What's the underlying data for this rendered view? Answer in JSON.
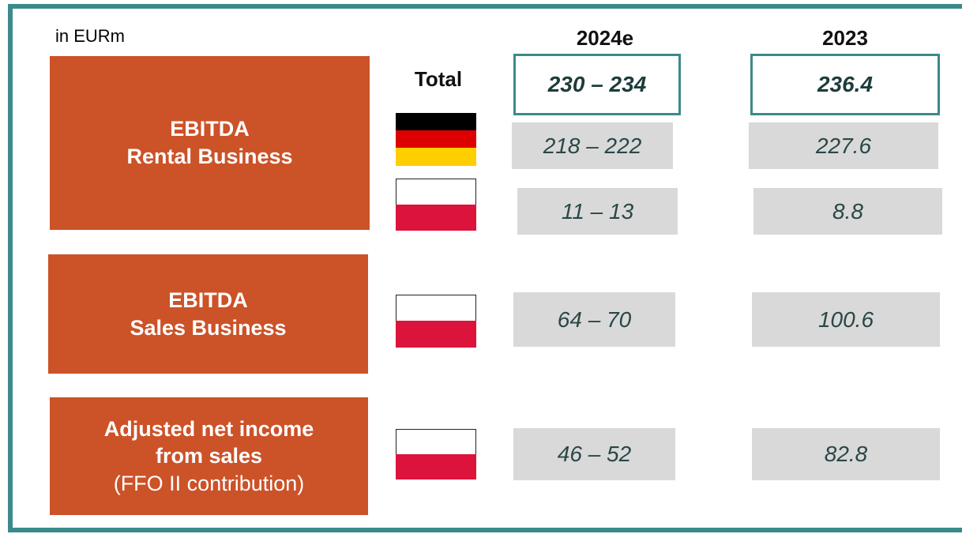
{
  "unit": "in EURm",
  "columns": [
    "2024e",
    "2023"
  ],
  "total": {
    "label": "Total",
    "values": [
      "230 – 234",
      "236.4"
    ]
  },
  "groups": [
    {
      "label_lines": [
        "EBITDA",
        "Rental Business"
      ],
      "rows": [
        [
          "218 – 222",
          "227.6"
        ],
        [
          "11 – 13",
          "8.8"
        ]
      ]
    },
    {
      "label_lines": [
        "EBITDA",
        "Sales Business"
      ],
      "rows": [
        [
          "64 – 70",
          "100.6"
        ]
      ]
    },
    {
      "label_lines": [
        "Adjusted net income",
        "from sales"
      ],
      "note": "(FFO II contribution)",
      "rows": [
        [
          "46 – 52",
          "82.8"
        ]
      ]
    }
  ]
}
